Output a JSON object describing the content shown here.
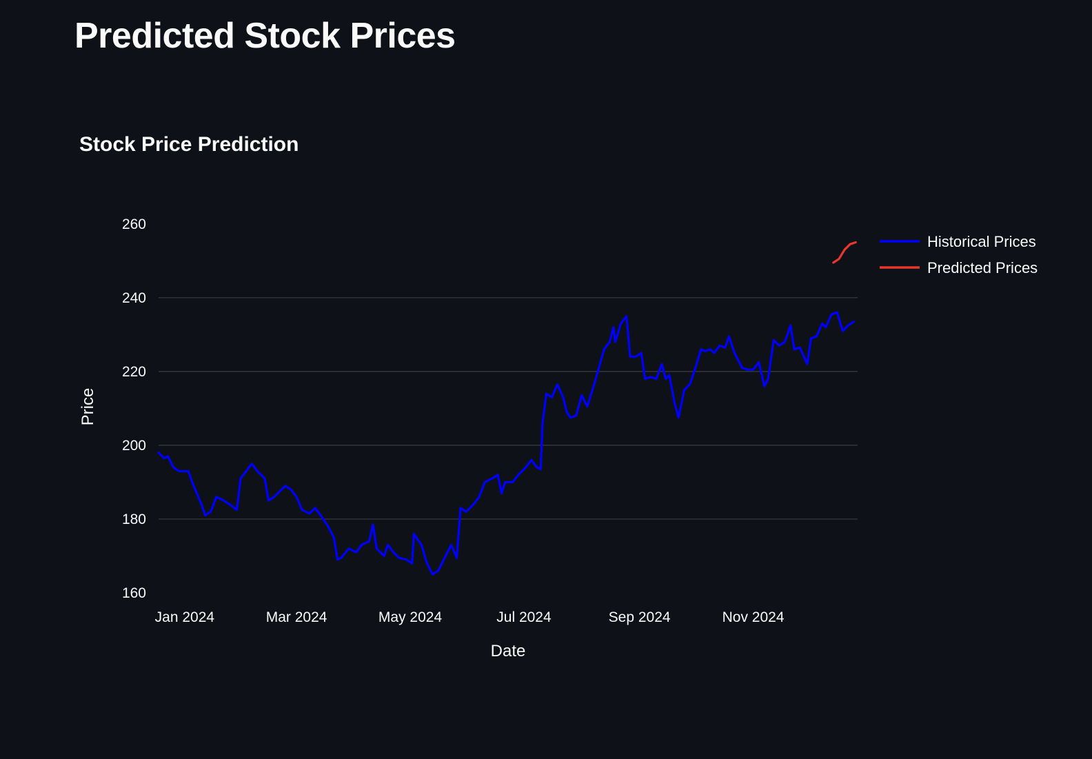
{
  "page": {
    "title": "Predicted Stock Prices"
  },
  "chart_data": {
    "type": "line",
    "title": "Stock Price Prediction",
    "xlabel": "Date",
    "ylabel": "Price",
    "xlim": [
      "2023-12-18",
      "2024-12-27"
    ],
    "ylim": [
      160,
      265
    ],
    "yticks": [
      160,
      180,
      200,
      220,
      240,
      260
    ],
    "ytick_labels": [
      "160",
      "180",
      "200",
      "220",
      "240",
      "260"
    ],
    "xticks": [
      "2024-01-01",
      "2024-03-01",
      "2024-05-01",
      "2024-07-01",
      "2024-09-01",
      "2024-11-01"
    ],
    "xtick_labels": [
      "Jan 2024",
      "Mar 2024",
      "May 2024",
      "Jul 2024",
      "Sep 2024",
      "Nov 2024"
    ],
    "grid": true,
    "legend_position": "top-right",
    "series": [
      {
        "name": "Historical Prices",
        "color": "#0000ff",
        "points": [
          [
            "2023-12-18",
            198
          ],
          [
            "2023-12-21",
            196.5
          ],
          [
            "2023-12-23",
            197
          ],
          [
            "2023-12-26",
            194
          ],
          [
            "2023-12-29",
            193
          ],
          [
            "2024-01-03",
            193
          ],
          [
            "2024-01-05",
            190
          ],
          [
            "2024-01-10",
            184
          ],
          [
            "2024-01-12",
            181
          ],
          [
            "2024-01-15",
            182
          ],
          [
            "2024-01-18",
            186
          ],
          [
            "2024-01-22",
            185
          ],
          [
            "2024-01-25",
            184
          ],
          [
            "2024-01-29",
            182.5
          ],
          [
            "2024-01-31",
            191
          ],
          [
            "2024-02-03",
            193
          ],
          [
            "2024-02-06",
            195
          ],
          [
            "2024-02-09",
            193
          ],
          [
            "2024-02-13",
            191
          ],
          [
            "2024-02-15",
            185
          ],
          [
            "2024-02-18",
            186
          ],
          [
            "2024-02-22",
            188
          ],
          [
            "2024-02-24",
            189
          ],
          [
            "2024-02-27",
            188
          ],
          [
            "2024-03-01",
            186
          ],
          [
            "2024-03-04",
            182.5
          ],
          [
            "2024-03-08",
            181.5
          ],
          [
            "2024-03-11",
            183
          ],
          [
            "2024-03-14",
            181
          ],
          [
            "2024-03-18",
            178
          ],
          [
            "2024-03-21",
            175
          ],
          [
            "2024-03-23",
            169
          ],
          [
            "2024-03-25",
            169.5
          ],
          [
            "2024-03-29",
            172
          ],
          [
            "2024-04-02",
            171
          ],
          [
            "2024-04-05",
            173
          ],
          [
            "2024-04-09",
            174
          ],
          [
            "2024-04-11",
            178.5
          ],
          [
            "2024-04-13",
            172
          ],
          [
            "2024-04-17",
            170
          ],
          [
            "2024-04-19",
            173
          ],
          [
            "2024-04-22",
            171
          ],
          [
            "2024-04-25",
            169.5
          ],
          [
            "2024-04-29",
            169
          ],
          [
            "2024-05-02",
            168
          ],
          [
            "2024-05-03",
            176
          ],
          [
            "2024-05-07",
            173
          ],
          [
            "2024-05-10",
            168
          ],
          [
            "2024-05-13",
            165
          ],
          [
            "2024-05-16",
            166
          ],
          [
            "2024-05-20",
            170
          ],
          [
            "2024-05-23",
            173
          ],
          [
            "2024-05-26",
            169.5
          ],
          [
            "2024-05-28",
            183
          ],
          [
            "2024-05-31",
            182
          ],
          [
            "2024-06-04",
            184
          ],
          [
            "2024-06-07",
            186
          ],
          [
            "2024-06-10",
            190
          ],
          [
            "2024-06-14",
            191
          ],
          [
            "2024-06-17",
            192
          ],
          [
            "2024-06-19",
            187
          ],
          [
            "2024-06-21",
            190
          ],
          [
            "2024-06-25",
            190
          ],
          [
            "2024-06-28",
            192
          ],
          [
            "2024-07-02",
            194
          ],
          [
            "2024-07-05",
            196
          ],
          [
            "2024-07-08",
            194
          ],
          [
            "2024-07-10",
            193.5
          ],
          [
            "2024-07-11",
            206
          ],
          [
            "2024-07-13",
            214
          ],
          [
            "2024-07-16",
            213
          ],
          [
            "2024-07-19",
            216.5
          ],
          [
            "2024-07-22",
            213
          ],
          [
            "2024-07-24",
            209
          ],
          [
            "2024-07-26",
            207.5
          ],
          [
            "2024-07-29",
            208
          ],
          [
            "2024-08-01",
            213.5
          ],
          [
            "2024-08-04",
            210.5
          ],
          [
            "2024-08-08",
            217
          ],
          [
            "2024-08-13",
            226
          ],
          [
            "2024-08-16",
            228
          ],
          [
            "2024-08-18",
            232
          ],
          [
            "2024-08-19",
            228
          ],
          [
            "2024-08-22",
            233
          ],
          [
            "2024-08-25",
            235
          ],
          [
            "2024-08-27",
            224
          ],
          [
            "2024-08-30",
            224
          ],
          [
            "2024-09-02",
            225
          ],
          [
            "2024-09-04",
            218
          ],
          [
            "2024-09-07",
            218.5
          ],
          [
            "2024-09-10",
            218
          ],
          [
            "2024-09-13",
            222
          ],
          [
            "2024-09-15",
            218
          ],
          [
            "2024-09-17",
            219
          ],
          [
            "2024-09-20",
            211
          ],
          [
            "2024-09-22",
            207.5
          ],
          [
            "2024-09-25",
            215
          ],
          [
            "2024-09-28",
            216.5
          ],
          [
            "2024-10-01",
            221
          ],
          [
            "2024-10-04",
            226
          ],
          [
            "2024-10-06",
            225.5
          ],
          [
            "2024-10-09",
            226
          ],
          [
            "2024-10-11",
            225
          ],
          [
            "2024-10-14",
            227
          ],
          [
            "2024-10-17",
            226.5
          ],
          [
            "2024-10-19",
            229.5
          ],
          [
            "2024-10-22",
            225
          ],
          [
            "2024-10-26",
            221
          ],
          [
            "2024-10-29",
            220.5
          ],
          [
            "2024-11-01",
            220.5
          ],
          [
            "2024-11-04",
            222.5
          ],
          [
            "2024-11-07",
            216
          ],
          [
            "2024-11-09",
            218
          ],
          [
            "2024-11-12",
            228.5
          ],
          [
            "2024-11-15",
            227
          ],
          [
            "2024-11-18",
            228
          ],
          [
            "2024-11-21",
            232.5
          ],
          [
            "2024-11-23",
            226
          ],
          [
            "2024-11-26",
            226.5
          ],
          [
            "2024-11-30",
            222
          ],
          [
            "2024-12-02",
            229
          ],
          [
            "2024-12-05",
            229.5
          ],
          [
            "2024-12-08",
            233
          ],
          [
            "2024-12-10",
            232
          ],
          [
            "2024-12-13",
            235.5
          ],
          [
            "2024-12-16",
            236
          ],
          [
            "2024-12-19",
            231
          ],
          [
            "2024-12-22",
            232.5
          ],
          [
            "2024-12-25",
            233.5
          ]
        ]
      },
      {
        "name": "Predicted Prices",
        "color": "#e8372c",
        "points": [
          [
            "2024-12-14",
            249.5
          ],
          [
            "2024-12-17",
            250.5
          ],
          [
            "2024-12-20",
            253
          ],
          [
            "2024-12-23",
            254.5
          ],
          [
            "2024-12-26",
            255
          ]
        ]
      }
    ]
  }
}
